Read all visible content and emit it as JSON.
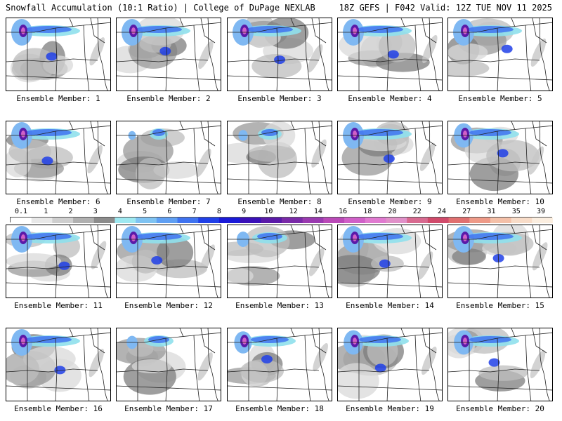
{
  "header": {
    "title": "Snowfall Accumulation (10:1 Ratio) | College of DuPage NEXLAB",
    "run_info": "18Z GEFS | F042 Valid: 12Z TUE NOV 11 2025"
  },
  "legend": {
    "ticks": [
      "0.1",
      "1",
      "2",
      "3",
      "4",
      "5",
      "6",
      "7",
      "8",
      "9",
      "10",
      "12",
      "14",
      "16",
      "18",
      "20",
      "22",
      "24",
      "27",
      "31",
      "35",
      "39"
    ],
    "colors": [
      "#ffffff",
      "#e8e8e8",
      "#cfcfcf",
      "#b0b0b0",
      "#8c8c8c",
      "#9ee8f0",
      "#7fc3f2",
      "#5f9ff3",
      "#3f73f0",
      "#2040e8",
      "#1a1ad8",
      "#3a10b8",
      "#5a1aa8",
      "#7a2aa8",
      "#9a3ab0",
      "#ba4ab8",
      "#d060c8",
      "#e07ad0",
      "#e090c8",
      "#d86a90",
      "#d04a6a",
      "#e07070",
      "#ee9a88",
      "#f4c0a8",
      "#f8dcc8",
      "#fbeee0"
    ]
  },
  "members": [
    {
      "label": "Ensemble Member: 1"
    },
    {
      "label": "Ensemble Member: 2"
    },
    {
      "label": "Ensemble Member: 3"
    },
    {
      "label": "Ensemble Member: 4"
    },
    {
      "label": "Ensemble Member: 5"
    },
    {
      "label": "Ensemble Member: 6"
    },
    {
      "label": "Ensemble Member: 7"
    },
    {
      "label": "Ensemble Member: 8"
    },
    {
      "label": "Ensemble Member: 9"
    },
    {
      "label": "Ensemble Member: 10"
    },
    {
      "label": "Ensemble Member: 11"
    },
    {
      "label": "Ensemble Member: 12"
    },
    {
      "label": "Ensemble Member: 13"
    },
    {
      "label": "Ensemble Member: 14"
    },
    {
      "label": "Ensemble Member: 15"
    },
    {
      "label": "Ensemble Member: 16"
    },
    {
      "label": "Ensemble Member: 17"
    },
    {
      "label": "Ensemble Member: 18"
    },
    {
      "label": "Ensemble Member: 19"
    },
    {
      "label": "Ensemble Member: 20"
    }
  ]
}
